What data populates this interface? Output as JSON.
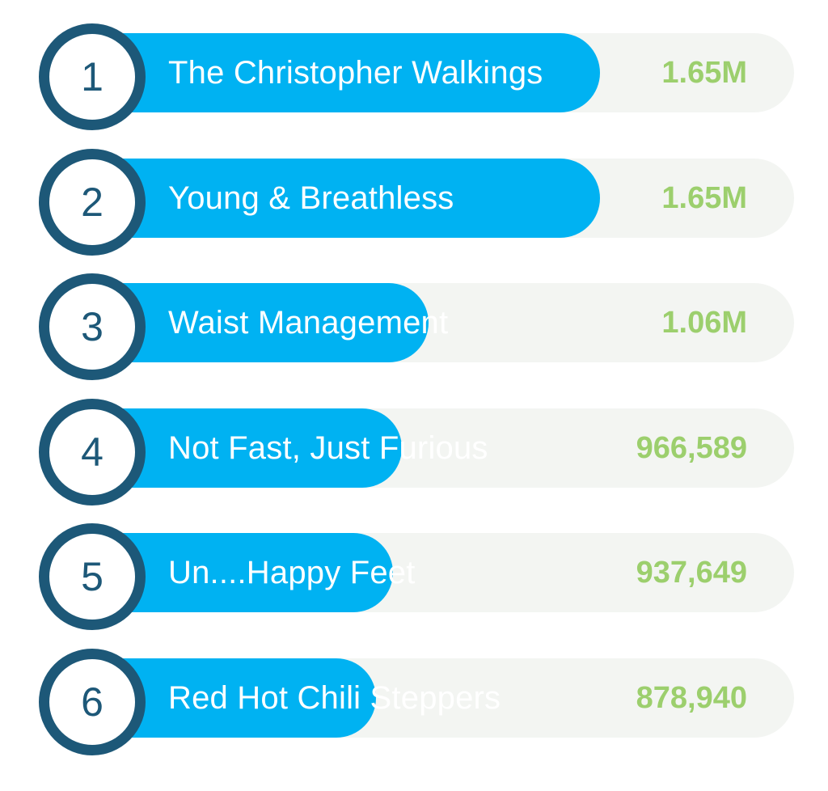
{
  "colors": {
    "bar": "#00b2f2",
    "track": "#f3f5f2",
    "badge_ring": "#1d5878",
    "value_text": "#9ccf6d",
    "name_text": "#ffffff"
  },
  "chart_data": {
    "type": "bar",
    "orientation": "horizontal",
    "title": "",
    "xlabel": "",
    "ylabel": "",
    "grid": false,
    "categories": [
      "The Christopher Walkings",
      "Young & Breathless",
      "Waist Management",
      "Not Fast, Just Furious",
      "Un....Happy Feet",
      "Red Hot Chili Steppers"
    ],
    "ranks": [
      "1",
      "2",
      "3",
      "4",
      "5",
      "6"
    ],
    "values": [
      1650000,
      1650000,
      1060000,
      966589,
      937649,
      878940
    ],
    "value_labels": [
      "1.65M",
      "1.65M",
      "1.06M",
      "966,589",
      "937,649",
      "878,940"
    ],
    "xlim": [
      0,
      2320000
    ]
  }
}
